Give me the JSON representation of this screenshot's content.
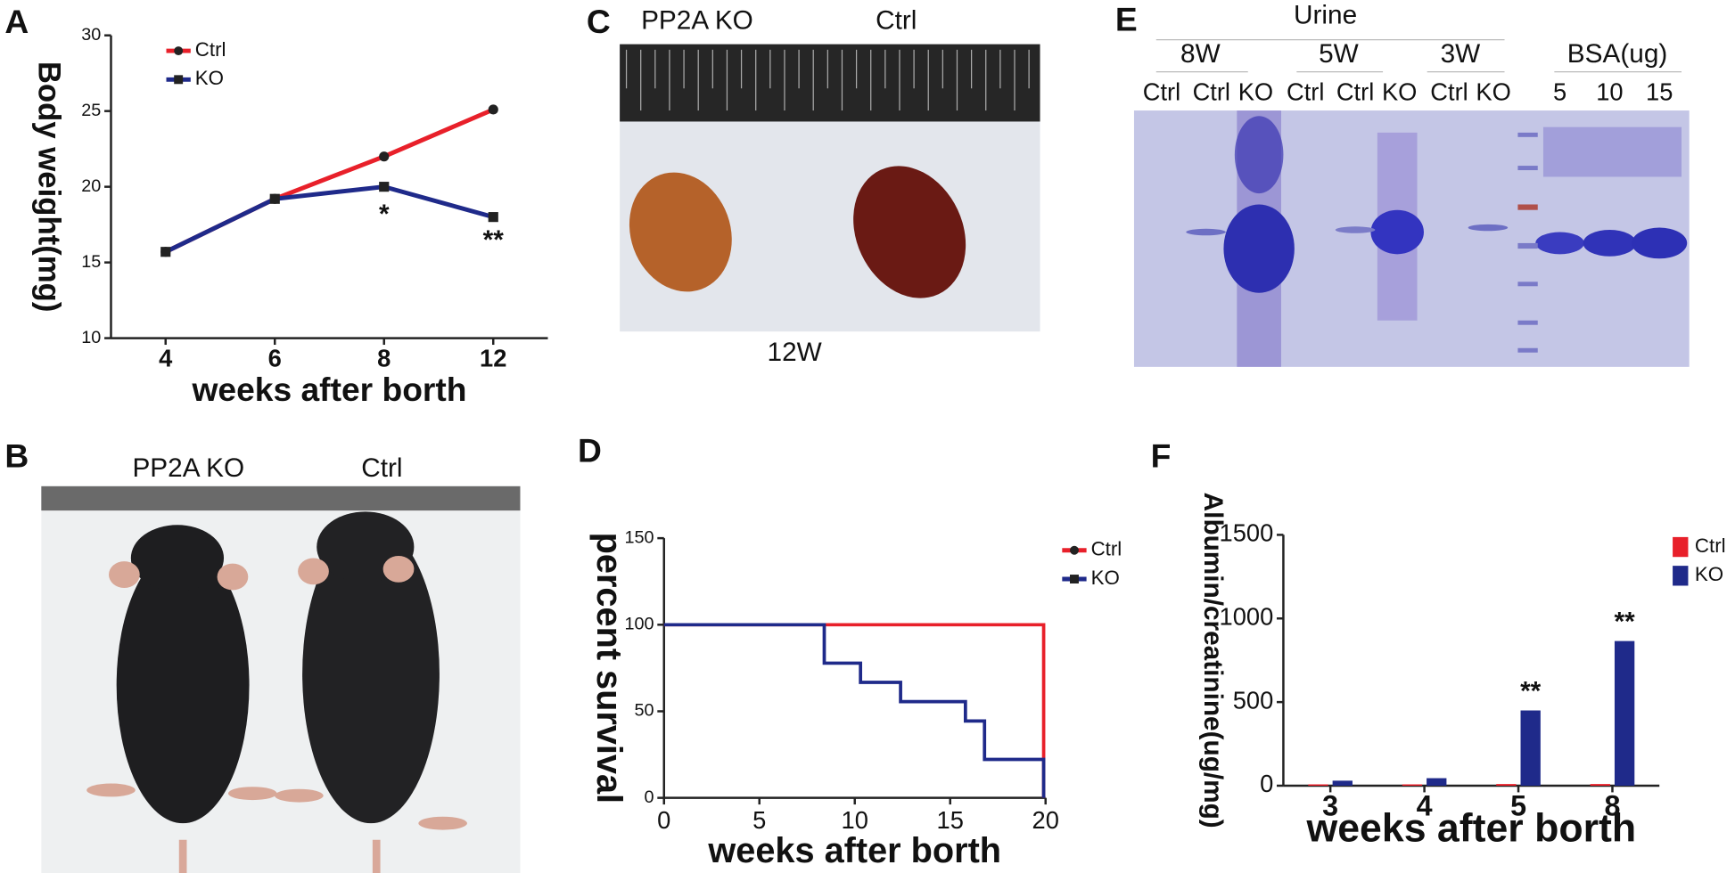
{
  "panel_labels": [
    "A",
    "B",
    "C",
    "D",
    "E",
    "F"
  ],
  "photos": {
    "b": {
      "labels": [
        "PP2A  KO",
        "Ctrl"
      ]
    },
    "c": {
      "labels": [
        "PP2A KO",
        "Ctrl"
      ],
      "caption": "12W"
    },
    "e": {
      "title": "Urine",
      "groups": [
        "8W",
        "5W",
        "3W",
        "BSA(ug)"
      ],
      "lanes": [
        "Ctrl",
        "Ctrl",
        "KO",
        "Ctrl",
        "Ctrl",
        "KO",
        "Ctrl",
        "KO",
        "5",
        "10",
        "15"
      ]
    }
  },
  "chart_data": [
    {
      "type": "line",
      "ylabel": "Body weight(mg)",
      "xlabel": "weeks after borth",
      "categories": [
        "4",
        "6",
        "8",
        "12"
      ],
      "ylim": [
        10,
        30
      ],
      "yticks": [
        10,
        15,
        20,
        25,
        30
      ],
      "legend": "top-left",
      "series": [
        {
          "name": "Ctrl",
          "color": "#e8202a",
          "values": [
            15.7,
            19.2,
            22.0,
            25.1
          ]
        },
        {
          "name": "KO",
          "color": "#1f2a8a",
          "values": [
            15.7,
            19.2,
            20.0,
            18.0
          ]
        }
      ],
      "annotations": [
        "*",
        "**"
      ]
    },
    {
      "type": "step",
      "ylabel": "percent survival",
      "xlabel": "weeks after borth",
      "x": [
        0,
        8.4,
        10.3,
        12.4,
        15.8,
        16.8,
        19.9
      ],
      "xlim": [
        0,
        20
      ],
      "xticks": [
        0,
        5,
        10,
        15,
        20
      ],
      "ylim": [
        0,
        150
      ],
      "yticks": [
        0,
        50,
        100,
        150
      ],
      "legend": "right",
      "series": [
        {
          "name": "Ctrl",
          "color": "#e8202a",
          "values": [
            100,
            100,
            100,
            100,
            100,
            100,
            0
          ]
        },
        {
          "name": "KO",
          "color": "#1f2a8a",
          "values": [
            100,
            77.8,
            66.7,
            55.6,
            44.4,
            22.2,
            0
          ]
        }
      ]
    },
    {
      "type": "bar",
      "ylabel": "Albumin/creatinine(ug/mg)",
      "xlabel": "weeks after borth",
      "categories": [
        "3",
        "4",
        "5",
        "8"
      ],
      "ylim": [
        0,
        1500
      ],
      "yticks": [
        0,
        500,
        1000,
        1500
      ],
      "legend": "top-right",
      "series": [
        {
          "name": "Ctrl",
          "color": "#e8202a",
          "values": [
            8,
            8,
            10,
            10
          ]
        },
        {
          "name": "KO",
          "color": "#1f2a8a",
          "values": [
            30,
            45,
            450,
            865
          ]
        }
      ],
      "annotations": [
        "**",
        "**"
      ]
    }
  ]
}
